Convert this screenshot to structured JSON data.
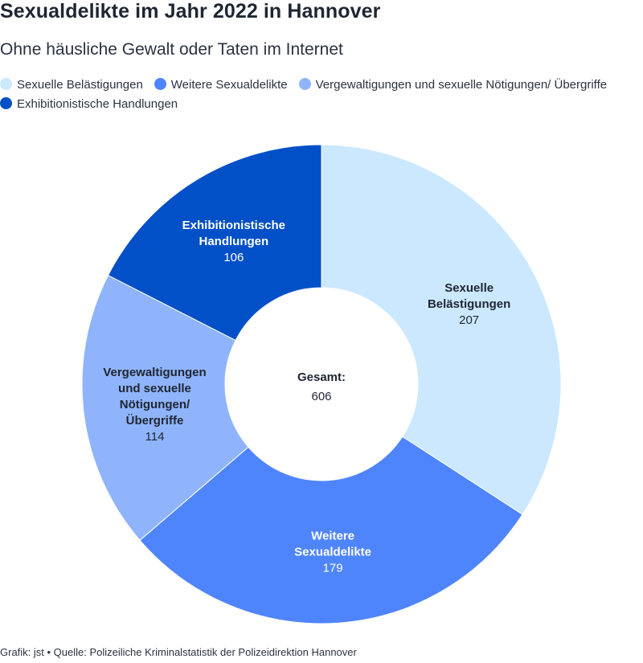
{
  "header": {
    "title": "Sexualdelikte im Jahr 2022 in Hannover",
    "subtitle": "Ohne häusliche Gewalt oder Taten im Internet"
  },
  "chart_data": {
    "type": "pie",
    "title": "Sexualdelikte im Jahr 2022 in Hannover",
    "subtitle": "Ohne häusliche Gewalt oder Taten im Internet",
    "legend_position": "top",
    "categories": [
      "Sexuelle Belästigungen",
      "Weitere Sexualdelikte",
      "Vergewaltigungen und sexuelle Nötigungen/ Übergriffe",
      "Exhibitionistische Handlungen"
    ],
    "values": [
      207,
      179,
      114,
      106
    ],
    "colors": [
      "#cce8ff",
      "#4f85fc",
      "#8fb4fb",
      "#0250c7"
    ],
    "slice_labels": [
      {
        "lines": [
          "Sexuelle",
          "Belästigungen"
        ],
        "value": "207",
        "text_color": "#1f2633"
      },
      {
        "lines": [
          "Weitere",
          "Sexualdelikte"
        ],
        "value": "179",
        "text_color": "#ffffff"
      },
      {
        "lines": [
          "Vergewaltigungen",
          "und sexuelle",
          "Nötigungen/",
          "Übergriffe"
        ],
        "value": "114",
        "text_color": "#1f2633"
      },
      {
        "lines": [
          "Exhibitionistische",
          "Handlungen"
        ],
        "value": "106",
        "text_color": "#ffffff"
      }
    ],
    "center_label": "Gesamt:",
    "total": "606"
  },
  "footer": {
    "text": "Grafik: jst • Quelle: Polizeiliche Kriminalstatistik der Polizeidirektion Hannover"
  }
}
